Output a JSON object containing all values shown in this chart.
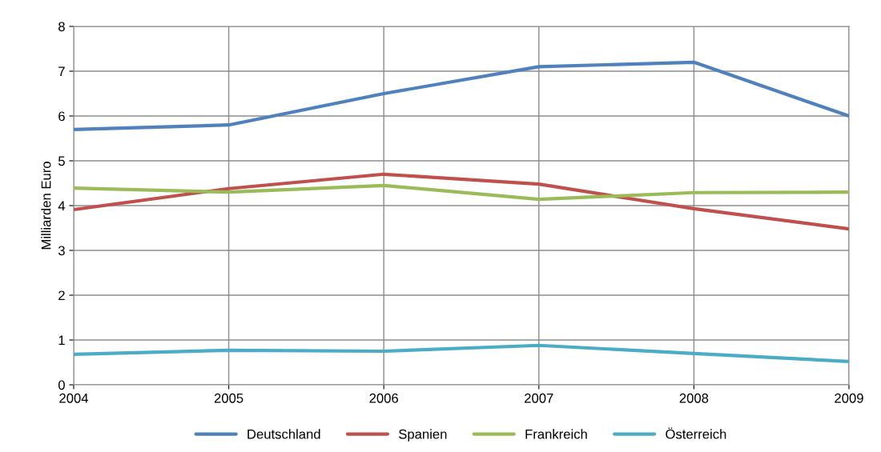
{
  "chart_data": {
    "type": "line",
    "ylabel": "Milliarden Euro",
    "x": [
      2004,
      2005,
      2006,
      2007,
      2008,
      2009
    ],
    "xlim": [
      2004,
      2009
    ],
    "xticks": [
      2004,
      2005,
      2006,
      2007,
      2008,
      2009
    ],
    "ylim": [
      0,
      8
    ],
    "yticks": [
      0,
      1,
      2,
      3,
      4,
      5,
      6,
      7,
      8
    ],
    "grid": true,
    "legend": "bottom",
    "marker": "none",
    "line_style": "solid",
    "series": [
      {
        "name": "Deutschland",
        "color": "#4f81bd",
        "values": [
          5.7,
          5.8,
          6.5,
          7.1,
          7.2,
          6.0
        ]
      },
      {
        "name": "Spanien",
        "color": "#c0504d",
        "values": [
          3.91,
          4.38,
          4.7,
          4.48,
          3.93,
          3.48
        ]
      },
      {
        "name": "Frankreich",
        "color": "#9bbb59",
        "values": [
          4.39,
          4.3,
          4.45,
          4.14,
          4.29,
          4.3
        ]
      },
      {
        "name": "Österreich",
        "color": "#4bacc6",
        "values": [
          0.68,
          0.77,
          0.75,
          0.88,
          0.7,
          0.52
        ]
      }
    ]
  }
}
